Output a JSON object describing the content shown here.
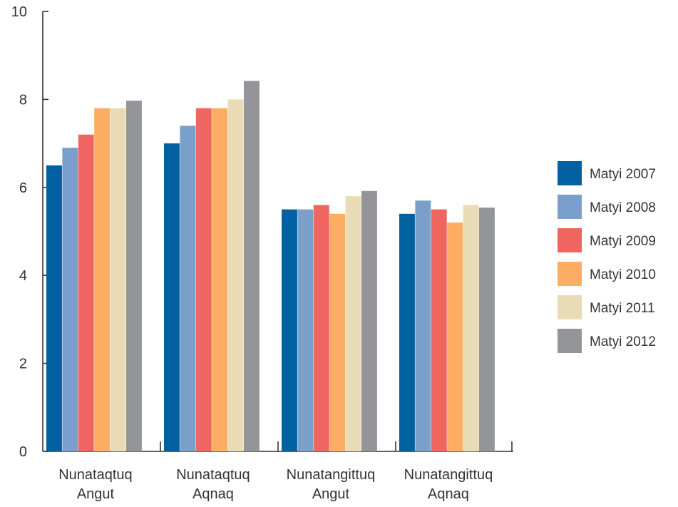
{
  "chart_data": {
    "type": "bar",
    "categories": [
      [
        "Nunataqtuq",
        "Angut"
      ],
      [
        "Nunataqtuq",
        "Aqnaq"
      ],
      [
        "Nunatangittuq",
        "Angut"
      ],
      [
        "Nunatangittuq",
        "Aqnaq"
      ]
    ],
    "series": [
      {
        "name": "Matyi 2007",
        "color": "#0060a0",
        "values": [
          6.5,
          7.0,
          5.5,
          5.4
        ]
      },
      {
        "name": "Matyi 2008",
        "color": "#7a9fca",
        "values": [
          6.9,
          7.4,
          5.5,
          5.7
        ]
      },
      {
        "name": "Matyi 2009",
        "color": "#ef6661",
        "values": [
          7.2,
          7.8,
          5.6,
          5.5
        ]
      },
      {
        "name": "Matyi 2010",
        "color": "#fbae63",
        "values": [
          7.8,
          7.8,
          5.4,
          5.2
        ]
      },
      {
        "name": "Matyi 2011",
        "color": "#e9dbb5",
        "values": [
          7.8,
          8.0,
          5.8,
          5.6
        ]
      },
      {
        "name": "Matyi 2012",
        "color": "#949599",
        "values": [
          7.97,
          8.42,
          5.92,
          5.54
        ]
      }
    ],
    "ylim": [
      0,
      10
    ],
    "yticks": [
      "0",
      "2",
      "4",
      "6",
      "8",
      "10"
    ],
    "grid": false,
    "legend_position": "right"
  }
}
